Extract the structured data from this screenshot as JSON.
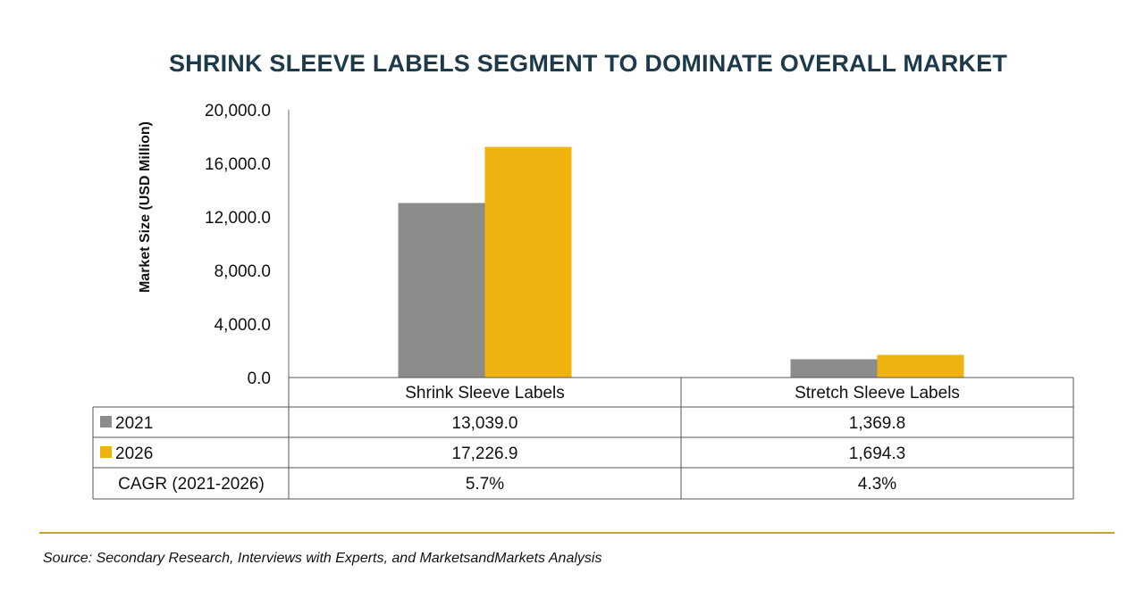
{
  "chart_data": {
    "type": "bar",
    "title": "SHRINK SLEEVE LABELS SEGMENT TO DOMINATE OVERALL MARKET",
    "ylabel": "Market Size (USD Million)",
    "xlabel": "",
    "ylim": [
      0,
      20000
    ],
    "yticks": [
      "0.0",
      "4,000.0",
      "8,000.0",
      "12,000.0",
      "16,000.0",
      "20,000.0"
    ],
    "ytick_values": [
      0,
      4000,
      8000,
      12000,
      16000,
      20000
    ],
    "categories": [
      "Shrink Sleeve Labels",
      "Stretch Sleeve Labels"
    ],
    "series": [
      {
        "name": "2021",
        "color": "#8c8c8a",
        "values": [
          13039.0,
          1369.8
        ],
        "labels": [
          "13,039.0",
          "1,369.8"
        ]
      },
      {
        "name": "2026",
        "color": "#eeb30f",
        "values": [
          17226.9,
          1694.3
        ],
        "labels": [
          "17,226.9",
          "1,694.3"
        ]
      }
    ],
    "cagr": {
      "label": "CAGR (2021-2026)",
      "values": [
        "5.7%",
        "4.3%"
      ]
    },
    "grid": false,
    "legend": "table"
  },
  "source": "Source: Secondary Research, Interviews with Experts, and MarketsandMarkets Analysis"
}
